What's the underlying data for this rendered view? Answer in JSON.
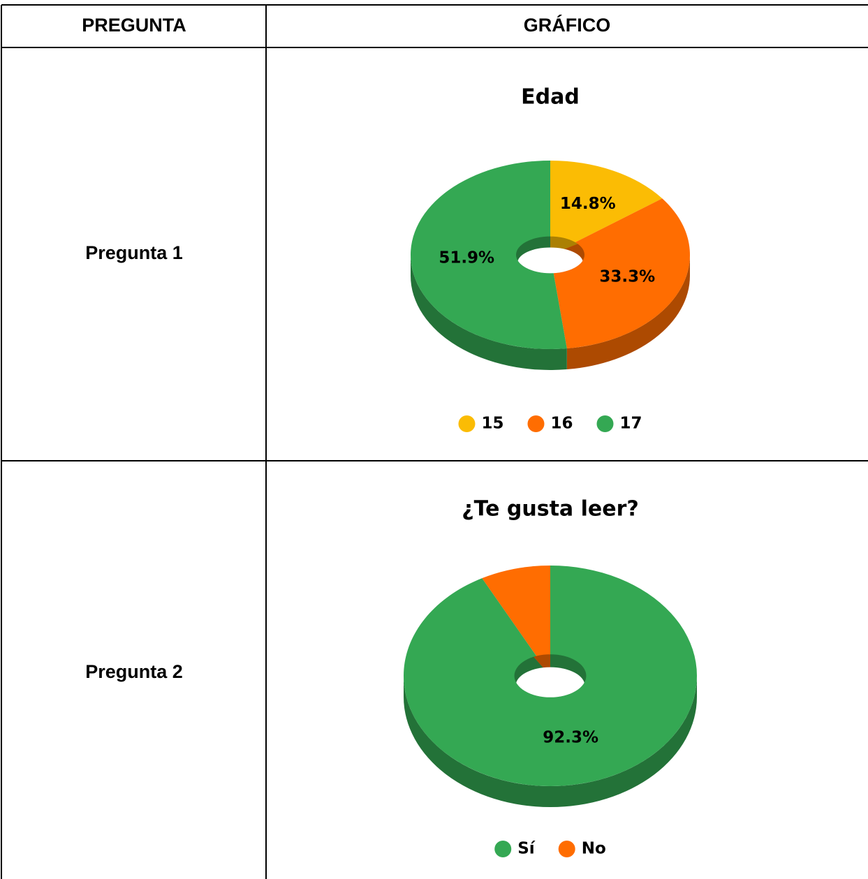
{
  "table": {
    "header": [
      "PREGUNTA",
      "GRÁFICO"
    ],
    "rows": [
      [
        "Pregunta 1"
      ],
      [
        "Pregunta 2"
      ]
    ]
  },
  "chart_data": [
    {
      "type": "pie",
      "title": "Edad",
      "categories": [
        "15",
        "16",
        "17"
      ],
      "values": [
        14.8,
        33.3,
        51.9
      ],
      "value_labels": [
        "14.8%",
        "33.3%",
        "51.9%"
      ],
      "colors": [
        "#fbbc04",
        "#ff6d01",
        "#34a853"
      ],
      "donut": true,
      "legend": "bottom"
    },
    {
      "type": "pie",
      "title": "¿Te gusta leer?",
      "categories": [
        "Sí",
        "No"
      ],
      "values": [
        92.3,
        7.7
      ],
      "value_labels": [
        "92.3%",
        null
      ],
      "colors": [
        "#34a853",
        "#ff6d01"
      ],
      "donut": true,
      "legend": "bottom"
    }
  ]
}
